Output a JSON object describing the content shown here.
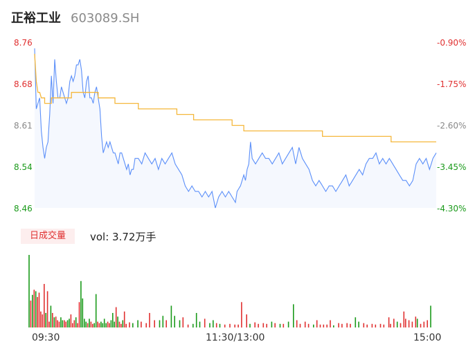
{
  "header": {
    "name": "正裕工业",
    "code": "603089.SH"
  },
  "colors": {
    "up": "#e03030",
    "down": "#1a9a1a",
    "neutral": "#888888",
    "price_line": "#5b8ff9",
    "avg_line": "#f5b73b"
  },
  "volume": {
    "tab_label": "日成交量",
    "summary": "vol: 3.72万手"
  },
  "chart_data": {
    "type": "line",
    "title": "",
    "y_left_ticks": [
      "8.76",
      "8.68",
      "8.61",
      "8.54",
      "8.46"
    ],
    "y_right_ticks": [
      "-0.90%",
      "-1.75%",
      "-2.60%",
      "-3.45%",
      "-4.30%"
    ],
    "ylim": [
      8.46,
      8.76
    ],
    "x_ticks": [
      "09:30",
      "11:30/13:00",
      "15:00"
    ],
    "x_range": [
      0,
      240
    ],
    "price_anchors": [
      [
        0,
        8.75
      ],
      [
        1,
        8.64
      ],
      [
        2,
        8.65
      ],
      [
        3,
        8.66
      ],
      [
        4,
        8.6
      ],
      [
        5,
        8.57
      ],
      [
        6,
        8.55
      ],
      [
        7,
        8.57
      ],
      [
        8,
        8.58
      ],
      [
        9,
        8.63
      ],
      [
        10,
        8.7
      ],
      [
        11,
        8.65
      ],
      [
        12,
        8.73
      ],
      [
        13,
        8.69
      ],
      [
        14,
        8.66
      ],
      [
        15,
        8.66
      ],
      [
        16,
        8.68
      ],
      [
        17,
        8.67
      ],
      [
        18,
        8.66
      ],
      [
        19,
        8.65
      ],
      [
        20,
        8.66
      ],
      [
        21,
        8.69
      ],
      [
        22,
        8.7
      ],
      [
        23,
        8.69
      ],
      [
        24,
        8.7
      ],
      [
        25,
        8.72
      ],
      [
        26,
        8.72
      ],
      [
        27,
        8.73
      ],
      [
        28,
        8.71
      ],
      [
        29,
        8.67
      ],
      [
        30,
        8.66
      ],
      [
        31,
        8.69
      ],
      [
        32,
        8.7
      ],
      [
        33,
        8.66
      ],
      [
        34,
        8.66
      ],
      [
        35,
        8.65
      ],
      [
        36,
        8.67
      ],
      [
        37,
        8.68
      ],
      [
        38,
        8.66
      ],
      [
        39,
        8.64
      ],
      [
        40,
        8.59
      ],
      [
        41,
        8.56
      ],
      [
        42,
        8.57
      ],
      [
        43,
        8.58
      ],
      [
        44,
        8.57
      ],
      [
        45,
        8.58
      ],
      [
        46,
        8.57
      ],
      [
        47,
        8.56
      ],
      [
        48,
        8.56
      ],
      [
        49,
        8.55
      ],
      [
        50,
        8.54
      ],
      [
        51,
        8.56
      ],
      [
        52,
        8.56
      ],
      [
        53,
        8.55
      ],
      [
        54,
        8.54
      ],
      [
        55,
        8.53
      ],
      [
        56,
        8.54
      ],
      [
        57,
        8.52
      ],
      [
        58,
        8.53
      ],
      [
        59,
        8.53
      ],
      [
        60,
        8.55
      ],
      [
        62,
        8.55
      ],
      [
        64,
        8.54
      ],
      [
        66,
        8.56
      ],
      [
        68,
        8.55
      ],
      [
        70,
        8.54
      ],
      [
        72,
        8.55
      ],
      [
        74,
        8.53
      ],
      [
        76,
        8.55
      ],
      [
        78,
        8.54
      ],
      [
        80,
        8.55
      ],
      [
        82,
        8.56
      ],
      [
        84,
        8.54
      ],
      [
        86,
        8.53
      ],
      [
        88,
        8.52
      ],
      [
        90,
        8.5
      ],
      [
        92,
        8.49
      ],
      [
        94,
        8.5
      ],
      [
        96,
        8.49
      ],
      [
        98,
        8.49
      ],
      [
        100,
        8.48
      ],
      [
        102,
        8.49
      ],
      [
        104,
        8.48
      ],
      [
        106,
        8.49
      ],
      [
        108,
        8.46
      ],
      [
        110,
        8.48
      ],
      [
        112,
        8.49
      ],
      [
        114,
        8.48
      ],
      [
        116,
        8.49
      ],
      [
        118,
        8.48
      ],
      [
        120,
        8.47
      ],
      [
        121,
        8.49
      ],
      [
        123,
        8.5
      ],
      [
        125,
        8.52
      ],
      [
        126,
        8.51
      ],
      [
        127,
        8.53
      ],
      [
        128,
        8.54
      ],
      [
        129,
        8.58
      ],
      [
        130,
        8.55
      ],
      [
        132,
        8.54
      ],
      [
        134,
        8.55
      ],
      [
        136,
        8.56
      ],
      [
        138,
        8.55
      ],
      [
        140,
        8.55
      ],
      [
        142,
        8.54
      ],
      [
        144,
        8.55
      ],
      [
        146,
        8.56
      ],
      [
        148,
        8.54
      ],
      [
        150,
        8.55
      ],
      [
        152,
        8.56
      ],
      [
        154,
        8.57
      ],
      [
        156,
        8.54
      ],
      [
        158,
        8.57
      ],
      [
        160,
        8.55
      ],
      [
        162,
        8.54
      ],
      [
        164,
        8.53
      ],
      [
        166,
        8.51
      ],
      [
        168,
        8.5
      ],
      [
        170,
        8.51
      ],
      [
        172,
        8.5
      ],
      [
        174,
        8.49
      ],
      [
        176,
        8.5
      ],
      [
        178,
        8.5
      ],
      [
        180,
        8.49
      ],
      [
        182,
        8.5
      ],
      [
        184,
        8.51
      ],
      [
        186,
        8.52
      ],
      [
        188,
        8.5
      ],
      [
        190,
        8.51
      ],
      [
        192,
        8.52
      ],
      [
        194,
        8.53
      ],
      [
        196,
        8.52
      ],
      [
        198,
        8.54
      ],
      [
        200,
        8.55
      ],
      [
        202,
        8.55
      ],
      [
        204,
        8.56
      ],
      [
        206,
        8.54
      ],
      [
        208,
        8.55
      ],
      [
        210,
        8.54
      ],
      [
        212,
        8.55
      ],
      [
        214,
        8.54
      ],
      [
        216,
        8.53
      ],
      [
        218,
        8.52
      ],
      [
        220,
        8.51
      ],
      [
        222,
        8.51
      ],
      [
        224,
        8.5
      ],
      [
        226,
        8.51
      ],
      [
        228,
        8.54
      ],
      [
        230,
        8.55
      ],
      [
        232,
        8.54
      ],
      [
        234,
        8.55
      ],
      [
        236,
        8.53
      ],
      [
        238,
        8.55
      ],
      [
        240,
        8.56
      ]
    ],
    "avg_anchors": [
      [
        0,
        8.74
      ],
      [
        1,
        8.69
      ],
      [
        2,
        8.67
      ],
      [
        3,
        8.67
      ],
      [
        4,
        8.66
      ],
      [
        6,
        8.65
      ],
      [
        10,
        8.66
      ],
      [
        22,
        8.67
      ],
      [
        38,
        8.66
      ],
      [
        48,
        8.65
      ],
      [
        62,
        8.64
      ],
      [
        85,
        8.63
      ],
      [
        95,
        8.62
      ],
      [
        118,
        8.61
      ],
      [
        125,
        8.6
      ],
      [
        160,
        8.6
      ],
      [
        172,
        8.59
      ],
      [
        200,
        8.59
      ],
      [
        213,
        8.58
      ],
      [
        240,
        8.58
      ]
    ],
    "volume_bars": [
      [
        0,
        100,
        "down"
      ],
      [
        1,
        37,
        "up"
      ],
      [
        2,
        45,
        "down"
      ],
      [
        3,
        52,
        "up"
      ],
      [
        4,
        50,
        "down"
      ],
      [
        5,
        42,
        "up"
      ],
      [
        6,
        48,
        "up"
      ],
      [
        7,
        22,
        "up"
      ],
      [
        8,
        18,
        "up"
      ],
      [
        9,
        60,
        "up"
      ],
      [
        10,
        20,
        "down"
      ],
      [
        11,
        50,
        "up"
      ],
      [
        12,
        8,
        "up"
      ],
      [
        13,
        30,
        "down"
      ],
      [
        14,
        20,
        "up"
      ],
      [
        15,
        14,
        "down"
      ],
      [
        16,
        15,
        "up"
      ],
      [
        17,
        10,
        "up"
      ],
      [
        18,
        8,
        "up"
      ],
      [
        19,
        14,
        "down"
      ],
      [
        20,
        10,
        "down"
      ],
      [
        21,
        10,
        "up"
      ],
      [
        22,
        8,
        "up"
      ],
      [
        23,
        10,
        "down"
      ],
      [
        24,
        12,
        "down"
      ],
      [
        25,
        18,
        "up"
      ],
      [
        26,
        6,
        "up"
      ],
      [
        27,
        10,
        "up"
      ],
      [
        28,
        14,
        "down"
      ],
      [
        29,
        6,
        "up"
      ],
      [
        30,
        35,
        "up"
      ],
      [
        31,
        64,
        "down"
      ],
      [
        32,
        40,
        "down"
      ],
      [
        33,
        12,
        "down"
      ],
      [
        34,
        8,
        "down"
      ],
      [
        35,
        6,
        "up"
      ],
      [
        36,
        12,
        "down"
      ],
      [
        37,
        8,
        "up"
      ],
      [
        38,
        5,
        "up"
      ],
      [
        39,
        6,
        "down"
      ],
      [
        40,
        46,
        "down"
      ],
      [
        41,
        8,
        "up"
      ],
      [
        42,
        6,
        "up"
      ],
      [
        43,
        8,
        "down"
      ],
      [
        44,
        6,
        "down"
      ],
      [
        45,
        12,
        "down"
      ],
      [
        46,
        6,
        "down"
      ],
      [
        47,
        8,
        "up"
      ],
      [
        48,
        6,
        "up"
      ],
      [
        49,
        10,
        "down"
      ],
      [
        50,
        20,
        "down"
      ],
      [
        51,
        8,
        "down"
      ],
      [
        52,
        28,
        "up"
      ],
      [
        53,
        15,
        "down"
      ],
      [
        54,
        8,
        "up"
      ],
      [
        55,
        5,
        "up"
      ],
      [
        56,
        10,
        "down"
      ],
      [
        57,
        22,
        "up"
      ],
      [
        58,
        5,
        "up"
      ],
      [
        60,
        7,
        "up"
      ],
      [
        62,
        6,
        "down"
      ],
      [
        65,
        10,
        "down"
      ],
      [
        67,
        8,
        "up"
      ],
      [
        70,
        6,
        "up"
      ],
      [
        72,
        20,
        "up"
      ],
      [
        75,
        10,
        "up"
      ],
      [
        78,
        10,
        "down"
      ],
      [
        80,
        16,
        "down"
      ],
      [
        82,
        10,
        "up"
      ],
      [
        85,
        30,
        "down"
      ],
      [
        87,
        16,
        "down"
      ],
      [
        90,
        10,
        "down"
      ],
      [
        92,
        14,
        "up"
      ],
      [
        95,
        4,
        "up"
      ],
      [
        98,
        5,
        "down"
      ],
      [
        100,
        20,
        "down"
      ],
      [
        102,
        8,
        "down"
      ],
      [
        105,
        12,
        "up"
      ],
      [
        108,
        6,
        "down"
      ],
      [
        110,
        10,
        "down"
      ],
      [
        112,
        6,
        "up"
      ],
      [
        114,
        5,
        "down"
      ],
      [
        117,
        4,
        "up"
      ],
      [
        120,
        5,
        "up"
      ],
      [
        123,
        4,
        "up"
      ],
      [
        125,
        4,
        "up"
      ],
      [
        127,
        35,
        "up"
      ],
      [
        130,
        18,
        "up"
      ],
      [
        132,
        5,
        "down"
      ],
      [
        135,
        7,
        "up"
      ],
      [
        137,
        5,
        "up"
      ],
      [
        140,
        6,
        "up"
      ],
      [
        142,
        5,
        "up"
      ],
      [
        145,
        8,
        "down"
      ],
      [
        147,
        6,
        "up"
      ],
      [
        150,
        5,
        "down"
      ],
      [
        152,
        5,
        "up"
      ],
      [
        155,
        8,
        "down"
      ],
      [
        158,
        32,
        "down"
      ],
      [
        160,
        10,
        "up"
      ],
      [
        162,
        5,
        "up"
      ],
      [
        165,
        8,
        "up"
      ],
      [
        167,
        5,
        "up"
      ],
      [
        170,
        4,
        "down"
      ],
      [
        172,
        10,
        "up"
      ],
      [
        174,
        4,
        "up"
      ],
      [
        176,
        4,
        "up"
      ],
      [
        178,
        4,
        "up"
      ],
      [
        180,
        10,
        "up"
      ],
      [
        182,
        3,
        "down"
      ],
      [
        185,
        6,
        "up"
      ],
      [
        187,
        5,
        "up"
      ],
      [
        190,
        6,
        "up"
      ],
      [
        192,
        5,
        "up"
      ],
      [
        195,
        14,
        "down"
      ],
      [
        197,
        8,
        "down"
      ],
      [
        200,
        6,
        "up"
      ],
      [
        202,
        4,
        "up"
      ],
      [
        205,
        5,
        "up"
      ],
      [
        207,
        4,
        "up"
      ],
      [
        210,
        5,
        "up"
      ],
      [
        212,
        4,
        "up"
      ],
      [
        215,
        14,
        "up"
      ],
      [
        216,
        5,
        "up"
      ],
      [
        218,
        12,
        "up"
      ],
      [
        220,
        8,
        "down"
      ],
      [
        222,
        6,
        "up"
      ],
      [
        224,
        22,
        "up"
      ],
      [
        225,
        12,
        "up"
      ],
      [
        227,
        10,
        "up"
      ],
      [
        229,
        8,
        "up"
      ],
      [
        231,
        15,
        "up"
      ],
      [
        232,
        12,
        "down"
      ],
      [
        234,
        5,
        "up"
      ],
      [
        236,
        8,
        "up"
      ],
      [
        238,
        10,
        "up"
      ],
      [
        240,
        30,
        "down"
      ]
    ]
  }
}
